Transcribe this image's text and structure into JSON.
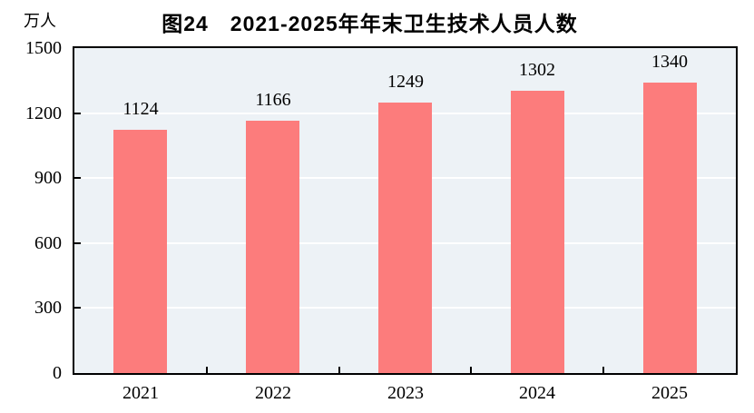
{
  "chart_data": {
    "type": "bar",
    "title": "图24　2021-2025年年末卫生技术人员人数",
    "unit_label": "万人",
    "categories": [
      "2021",
      "2022",
      "2023",
      "2024",
      "2025"
    ],
    "values": [
      1124,
      1166,
      1249,
      1302,
      1340
    ],
    "series_name": "年末卫生技术人员人数",
    "ylim": [
      0,
      1500
    ],
    "yticks": [
      0,
      300,
      600,
      900,
      1200,
      1500
    ],
    "legend": "none",
    "grid": "horizontal-white-gridlines",
    "data_labels": "above-bars",
    "colors": {
      "bar": "#FC7C7C",
      "plot_background": "#EDF2F6",
      "gridline": "#FFFFFF",
      "axis": "#000000",
      "text": "#000000"
    }
  }
}
